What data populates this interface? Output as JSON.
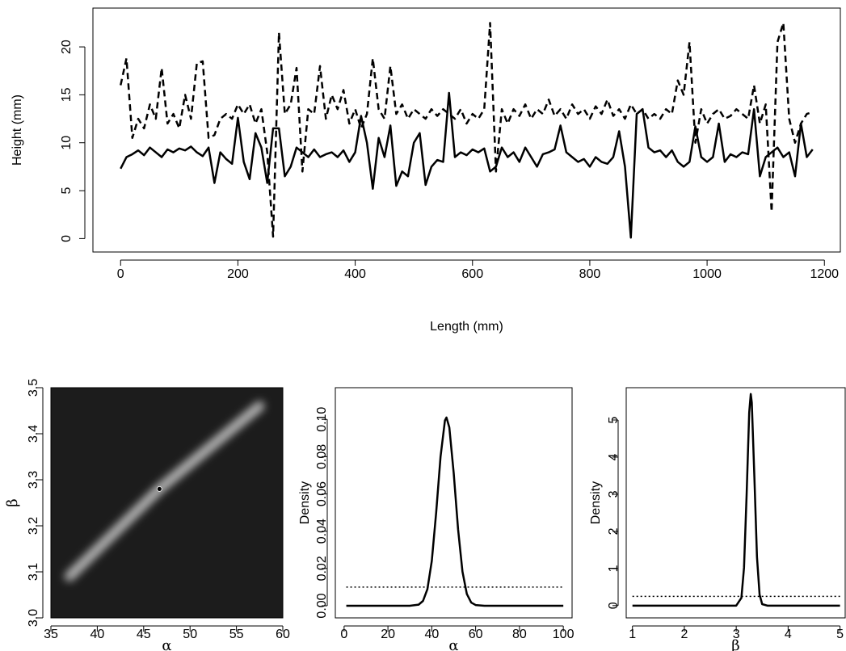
{
  "chart_data": [
    {
      "type": "line",
      "x_label": "Length (mm)",
      "y_label": "Height (mm)",
      "x": [
        0,
        10,
        20,
        30,
        40,
        50,
        60,
        70,
        80,
        90,
        100,
        110,
        120,
        130,
        140,
        150,
        160,
        170,
        180,
        190,
        200,
        210,
        220,
        230,
        240,
        250,
        260,
        270,
        280,
        290,
        300,
        310,
        320,
        330,
        340,
        350,
        360,
        370,
        380,
        390,
        400,
        410,
        420,
        430,
        440,
        450,
        460,
        470,
        480,
        490,
        500,
        510,
        520,
        530,
        540,
        550,
        560,
        570,
        580,
        590,
        600,
        610,
        620,
        630,
        640,
        650,
        660,
        670,
        680,
        690,
        700,
        710,
        720,
        730,
        740,
        750,
        760,
        770,
        780,
        790,
        800,
        810,
        820,
        830,
        840,
        850,
        860,
        870,
        880,
        890,
        900,
        910,
        920,
        930,
        940,
        950,
        960,
        970,
        980,
        990,
        1000,
        1010,
        1020,
        1030,
        1040,
        1050,
        1060,
        1070,
        1080,
        1090,
        1100,
        1110,
        1120,
        1130,
        1140,
        1150,
        1160,
        1170,
        1180
      ],
      "series": [
        {
          "color": "#000000",
          "dash": "solid",
          "values": [
            7.3,
            8.5,
            8.8,
            9.2,
            8.7,
            9.5,
            9.0,
            8.5,
            9.3,
            9.0,
            9.4,
            9.2,
            9.6,
            9.0,
            8.6,
            9.5,
            5.8,
            9.0,
            8.3,
            7.8,
            12.6,
            8.0,
            6.2,
            11.0,
            9.5,
            5.8,
            11.5,
            11.5,
            6.5,
            7.5,
            9.5,
            9.0,
            8.5,
            9.3,
            8.5,
            8.8,
            9.0,
            8.5,
            9.2,
            8.0,
            9.0,
            12.8,
            10.0,
            5.2,
            10.5,
            8.5,
            11.8,
            5.5,
            7.0,
            6.5,
            10.0,
            11.0,
            5.6,
            7.5,
            8.2,
            8.0,
            15.2,
            8.5,
            9.0,
            8.7,
            9.3,
            9.0,
            9.4,
            7.0,
            7.5,
            9.5,
            8.5,
            9.0,
            8.0,
            9.5,
            8.5,
            7.5,
            8.8,
            9.0,
            9.3,
            11.8,
            9.0,
            8.5,
            8.0,
            8.3,
            7.5,
            8.5,
            8.0,
            7.8,
            8.5,
            11.2,
            7.5,
            0.1,
            13.0,
            13.5,
            9.5,
            9.0,
            9.2,
            8.5,
            9.2,
            8.0,
            7.5,
            8.0,
            11.7,
            8.5,
            8.0,
            8.5,
            12.0,
            8.0,
            8.8,
            8.5,
            9.0,
            8.8,
            13.5,
            6.5,
            8.5,
            9.0,
            9.5,
            8.5,
            9.0,
            6.5,
            12.0,
            8.5,
            9.3
          ]
        },
        {
          "color": "#000000",
          "dash": "dashed",
          "values": [
            16.0,
            18.8,
            10.5,
            12.5,
            11.5,
            14.0,
            12.5,
            17.8,
            12.0,
            13.0,
            11.5,
            15.0,
            12.5,
            18.3,
            18.5,
            10.5,
            10.8,
            12.5,
            13.0,
            12.5,
            14.0,
            13.0,
            14.0,
            12.0,
            13.5,
            9.0,
            0.2,
            21.5,
            13.0,
            14.0,
            17.8,
            7.0,
            13.5,
            13.0,
            18.0,
            12.5,
            15.0,
            13.5,
            15.5,
            12.0,
            13.5,
            11.5,
            13.0,
            18.8,
            13.5,
            12.5,
            18.0,
            13.0,
            14.0,
            12.5,
            13.5,
            13.0,
            12.5,
            13.5,
            12.8,
            13.5,
            13.0,
            12.5,
            13.5,
            12.0,
            13.0,
            12.5,
            13.5,
            22.5,
            7.0,
            13.5,
            12.0,
            13.5,
            12.8,
            14.0,
            12.5,
            13.5,
            13.0,
            14.5,
            12.8,
            13.5,
            12.5,
            14.0,
            13.0,
            13.5,
            12.5,
            13.8,
            13.0,
            14.5,
            12.8,
            13.5,
            12.5,
            14.0,
            13.0,
            13.5,
            12.5,
            13.0,
            12.5,
            13.5,
            13.0,
            16.5,
            15.0,
            20.5,
            10.0,
            13.5,
            12.0,
            13.0,
            13.5,
            12.5,
            12.8,
            13.5,
            13.0,
            12.5,
            16.0,
            12.0,
            14.0,
            2.8,
            20.5,
            22.5,
            12.5,
            10.0,
            12.0,
            13.0,
            13.2
          ]
        }
      ],
      "xlim": [
        -47.2,
        1227.2
      ],
      "xticks": [
        0,
        200,
        400,
        600,
        800,
        1000,
        1200
      ],
      "ylim": [
        -1.4,
        24.05
      ],
      "yticks": [
        0,
        5,
        10,
        15,
        20
      ],
      "box": true
    },
    {
      "type": "heatmap",
      "x_label": "α",
      "y_label": "β",
      "background": "#1c1c1c",
      "ridge": {
        "color": "#e8e8e8",
        "x": [
          37,
          46.7,
          57.5
        ],
        "values": [
          3.09,
          3.28,
          3.46
        ]
      },
      "point": {
        "color": "#000000",
        "x": 46.7,
        "y": 3.28
      },
      "xlim": [
        35,
        60
      ],
      "xticks": [
        35,
        40,
        45,
        50,
        55,
        60
      ],
      "ylim": [
        3.0,
        3.5
      ],
      "yticks": [
        {
          "value": 3.0,
          "label": "3.0"
        },
        3.1,
        3.2,
        3.3,
        3.4,
        {
          "value": 3.5,
          "label": "3.5"
        }
      ],
      "box": true
    },
    {
      "type": "line",
      "x_label": "α",
      "y_label": "Density",
      "series": [
        {
          "color": "#000000",
          "dash": "solid",
          "x": [
            1,
            10,
            20,
            30,
            34,
            36,
            38,
            40,
            42,
            44,
            46,
            46.7,
            48,
            50,
            52,
            54,
            56,
            58,
            60,
            64,
            70,
            80,
            90,
            100
          ],
          "values": [
            0,
            0,
            0,
            0,
            0.0006,
            0.0026,
            0.0089,
            0.024,
            0.05,
            0.08,
            0.0994,
            0.101,
            0.0957,
            0.0712,
            0.041,
            0.0183,
            0.0063,
            0.0017,
            0.0004,
            0,
            0,
            0,
            0,
            0
          ]
        },
        {
          "color": "#000000",
          "dash": "dotted",
          "x": [
            1,
            100
          ],
          "values": [
            0.01,
            0.01
          ]
        }
      ],
      "xlim": [
        -4,
        104
      ],
      "xticks": [
        0,
        20,
        40,
        60,
        80,
        100
      ],
      "ylim": [
        -0.0065,
        0.117
      ],
      "yticks": [
        {
          "value": 0,
          "label": "0.00"
        },
        0.02,
        0.04,
        0.06,
        0.08,
        {
          "value": 0.1,
          "label": "0.10"
        }
      ],
      "box": true
    },
    {
      "type": "line",
      "x_label": "β",
      "y_label": "Density",
      "series": [
        {
          "color": "#000000",
          "dash": "solid",
          "x": [
            1,
            2,
            3,
            3.1,
            3.15,
            3.2,
            3.25,
            3.28,
            3.3,
            3.35,
            3.4,
            3.45,
            3.5,
            3.6,
            4,
            5
          ],
          "values": [
            0,
            0,
            0,
            0.21,
            1.02,
            2.97,
            5.2,
            5.7,
            5.47,
            3.46,
            1.31,
            0.3,
            0.04,
            0,
            0,
            0
          ]
        },
        {
          "color": "#000000",
          "dash": "dotted",
          "x": [
            1,
            5
          ],
          "values": [
            0.25,
            0.25
          ]
        }
      ],
      "xlim": [
        0.88,
        5.1
      ],
      "xticks": [
        1,
        2,
        3,
        4,
        5
      ],
      "ylim": [
        -0.33,
        5.87
      ],
      "yticks": [
        0,
        1,
        2,
        3,
        4,
        5
      ],
      "box": true
    }
  ]
}
